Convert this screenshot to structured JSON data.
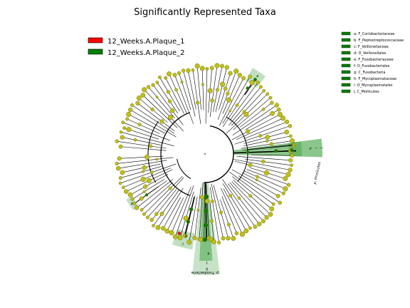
{
  "title": "Significantly Represented Taxa",
  "legend": {
    "groups": [
      {
        "name": "12_Weeks.A.Plaque_1",
        "color": "#ff0000"
      },
      {
        "name": "12_Weeks.A.Plaque_2",
        "color": "#008000"
      }
    ]
  },
  "key": {
    "entries": [
      {
        "letter": "a",
        "label": "a: F_Coriobacteriaceae"
      },
      {
        "letter": "b",
        "label": "b: F_Peptostreptococcaceae"
      },
      {
        "letter": "c",
        "label": "c: F_Veillonellaceae"
      },
      {
        "letter": "d",
        "label": "d: O_Veillonellales"
      },
      {
        "letter": "e",
        "label": "e: F_Fusobacteriaceae"
      },
      {
        "letter": "f",
        "label": "f: O_Fusobacteriales"
      },
      {
        "letter": "g",
        "label": "g: C_Fusobacteria"
      },
      {
        "letter": "h",
        "label": "h: F_Mycoplasmataceae"
      },
      {
        "letter": "i",
        "label": "i: O_Mycoplasmatales"
      },
      {
        "letter": "j",
        "label": "j: C_Mollicutes"
      }
    ]
  },
  "clade_labels": {
    "firmicutes": "p: Firmicutes",
    "fusobacteria": "p: Fusobacteria"
  },
  "colors": {
    "node": "#bfbf1a",
    "node_stroke": "#6e6e00",
    "highlight": "#008000",
    "highlight_node": "#0a7a0a",
    "enriched_plaque1": "#ff0000",
    "edge": "#000000"
  }
}
